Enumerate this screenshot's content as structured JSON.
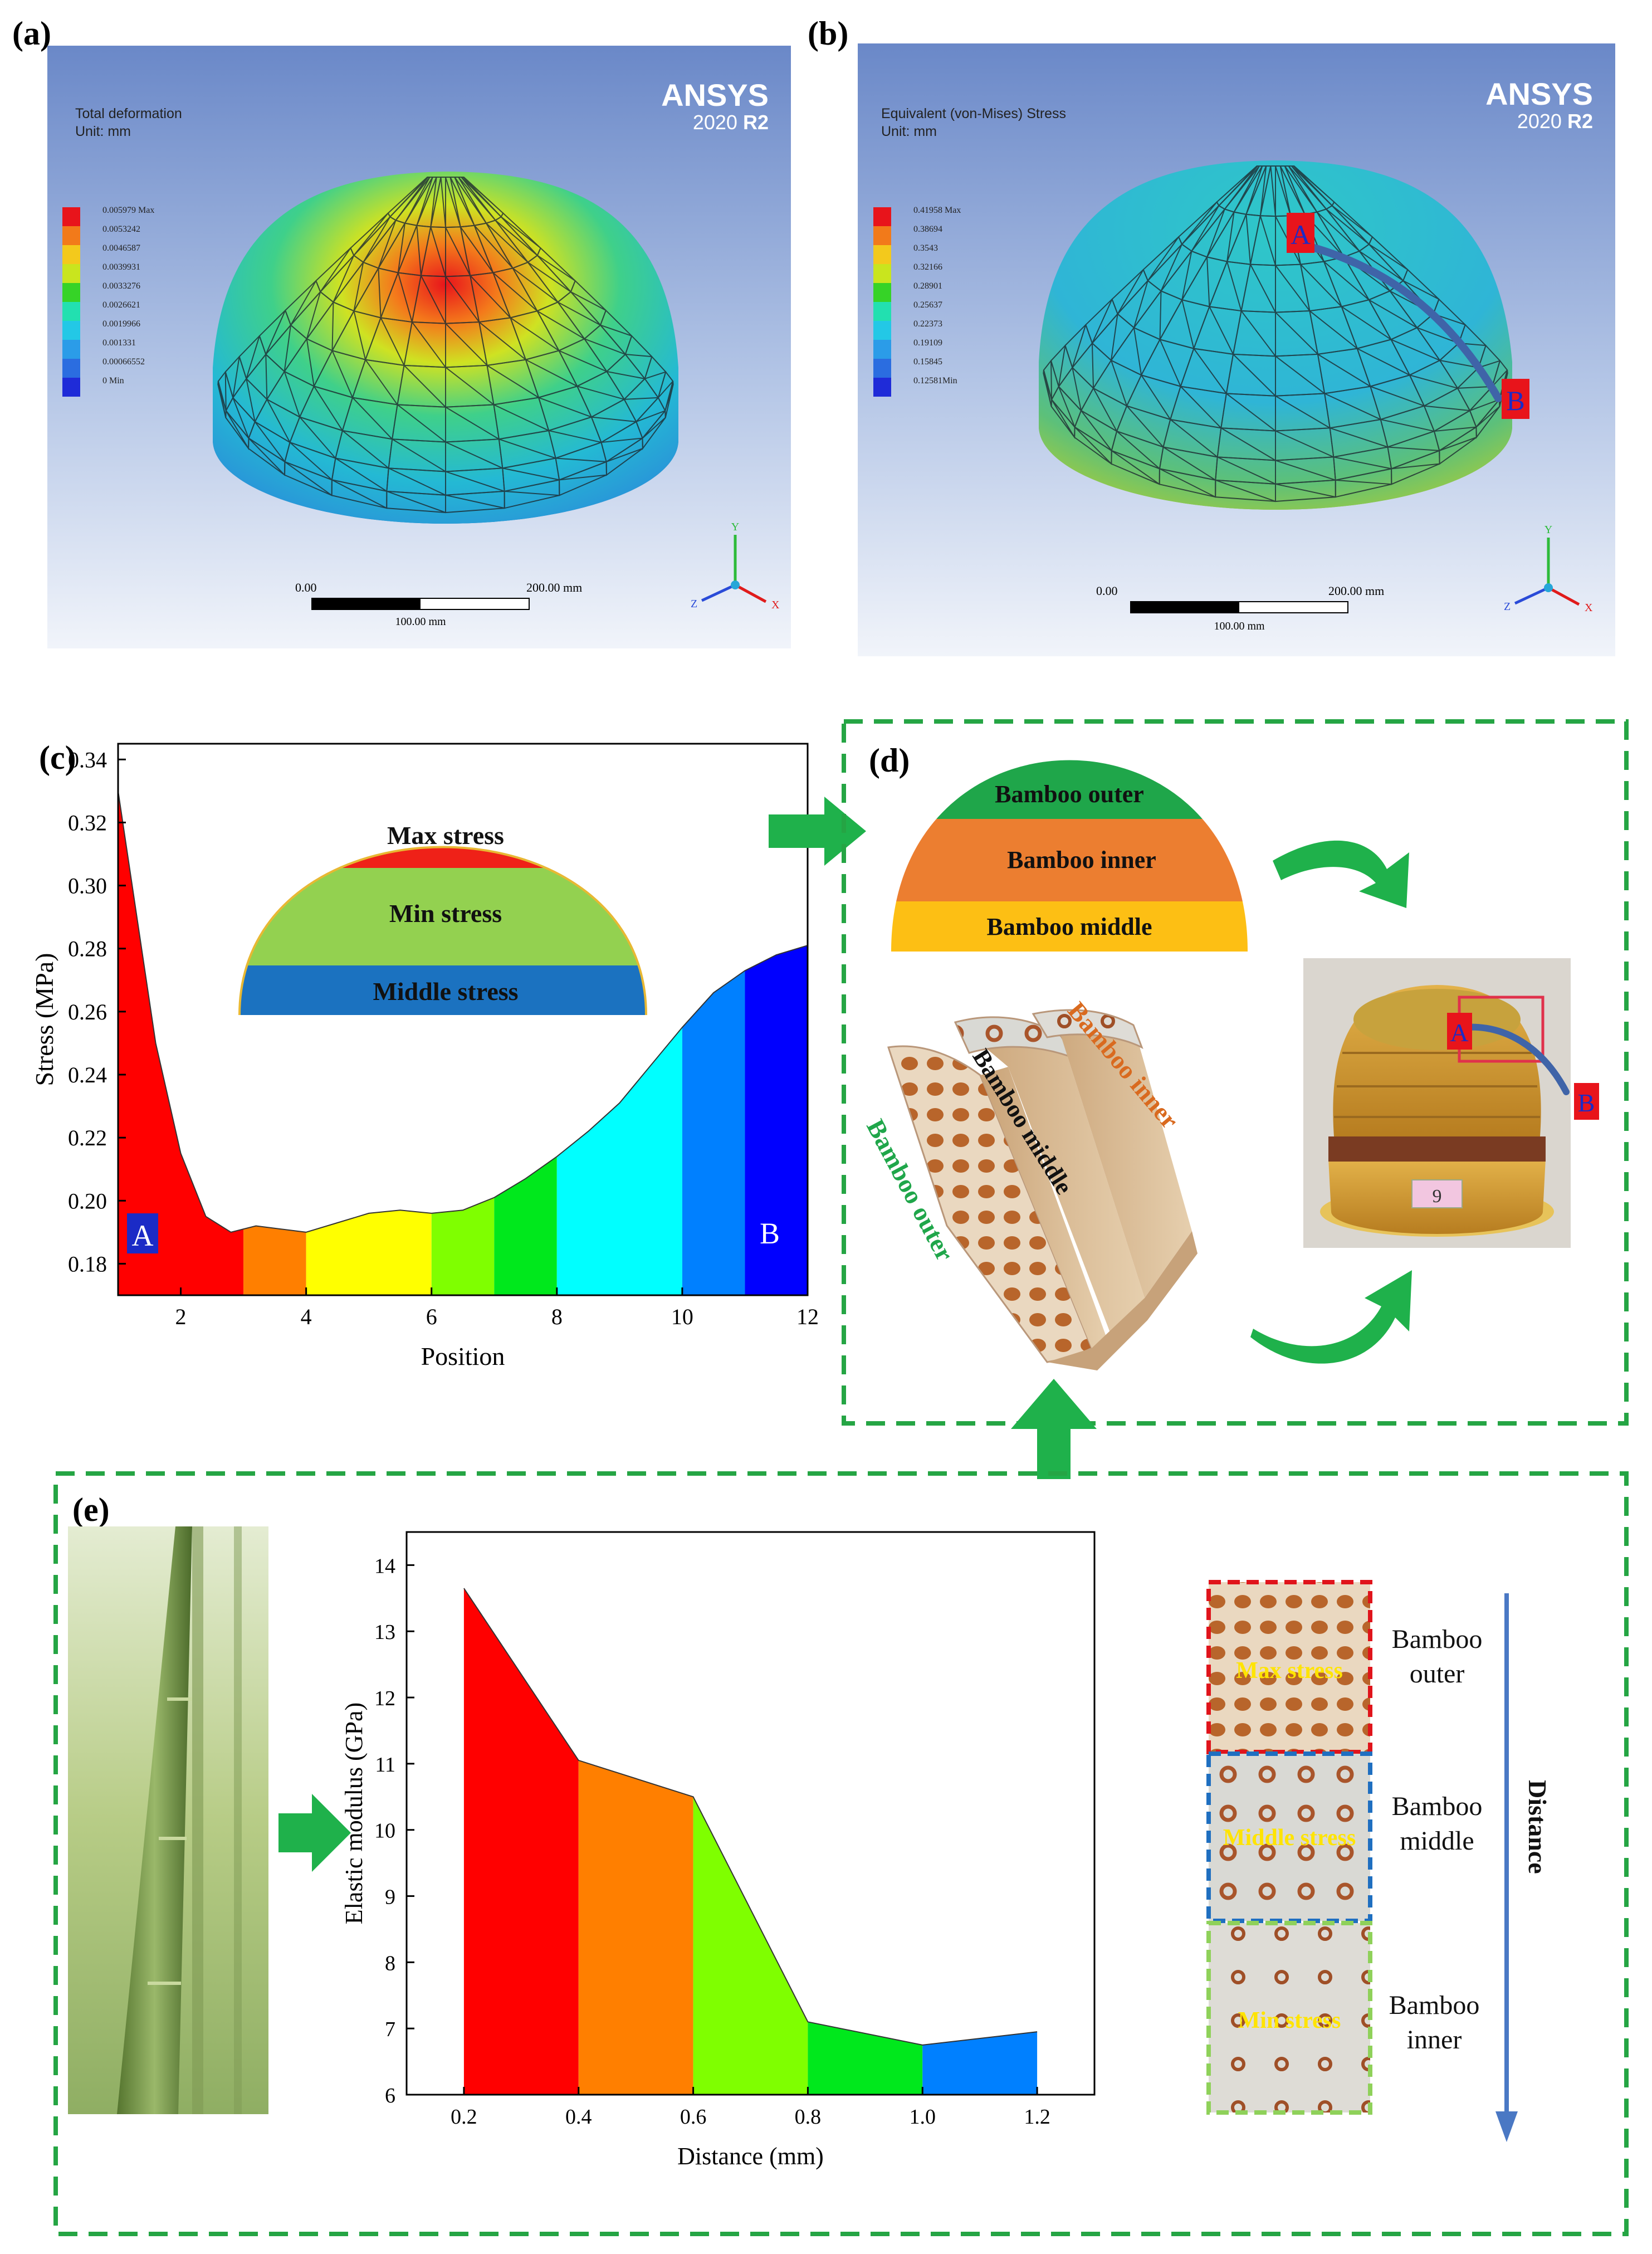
{
  "panel_labels": {
    "a": "(a)",
    "b": "(b)",
    "c": "(c)",
    "d": "(d)",
    "e": "(e)"
  },
  "ansys": {
    "brand": "ANSYS",
    "version": "2020",
    "release": "R2"
  },
  "panel_a": {
    "title": "Total deformation",
    "unit": "Unit: mm",
    "legend": [
      "0.005979 Max",
      "0.0053242",
      "0.0046587",
      "0.0039931",
      "0.0033276",
      "0.0026621",
      "0.0019966",
      "0.001331",
      "0.00066552",
      "0 Min"
    ],
    "scale": {
      "zero": "0.00",
      "end": "200.00 mm",
      "mid": "100.00 mm"
    }
  },
  "panel_b": {
    "title": "Equivalent (von-Mises) Stress",
    "unit": "Unit: mm",
    "legend": [
      "0.41958 Max",
      "0.38694",
      "0.3543",
      "0.32166",
      "0.28901",
      "0.25637",
      "0.22373",
      "0.19109",
      "0.15845",
      "0.12581Min"
    ],
    "scale": {
      "zero": "0.00",
      "end": "200.00 mm",
      "mid": "100.00 mm"
    },
    "marker_a": "A",
    "marker_b": "B"
  },
  "axis_triad": {
    "y": "Y",
    "z": "Z",
    "x": "X"
  },
  "legend_colors": [
    "#e8141b",
    "#f27a1a",
    "#f3c91c",
    "#c9e51e",
    "#36d327",
    "#22e0b0",
    "#23c8e6",
    "#2b9ce8",
    "#2b6de0",
    "#1f2bd8"
  ],
  "panel_c": {
    "dome_bands": [
      "Max stress",
      "Min stress",
      "Middle stress"
    ],
    "point_a": "A",
    "point_b": "B"
  },
  "panel_d": {
    "dome_bands": [
      "Bamboo outer",
      "Bamboo inner",
      "Bamboo middle"
    ],
    "strip_labels": {
      "outer": "Bamboo outer",
      "middle": "Bamboo middle",
      "inner": "Bamboo inner"
    },
    "photo_marker_a": "A",
    "photo_marker_b": "B",
    "tag": "9"
  },
  "panel_e": {
    "layers": [
      {
        "overlay": "Max stress",
        "label_line1": "Bamboo",
        "label_line2": "outer"
      },
      {
        "overlay": "Middle stress",
        "label_line1": "Bamboo",
        "label_line2": "middle"
      },
      {
        "overlay": "Min stress",
        "label_line1": "Bamboo",
        "label_line2": "inner"
      }
    ],
    "distance_label": "Distance"
  },
  "chart_data": [
    {
      "type": "area",
      "panel": "(c)",
      "xlabel": "Position",
      "ylabel": "Stress (MPa)",
      "xlim": [
        1,
        12
      ],
      "ylim": [
        0.17,
        0.345
      ],
      "xticks": [
        2,
        4,
        6,
        8,
        10,
        12
      ],
      "yticks": [
        0.18,
        0.2,
        0.22,
        0.24,
        0.26,
        0.28,
        0.3,
        0.32,
        0.34
      ],
      "x": [
        1,
        1.3,
        1.6,
        2.0,
        2.4,
        2.8,
        3.2,
        3.6,
        4.0,
        4.5,
        5.0,
        5.5,
        6.0,
        6.5,
        7.0,
        7.5,
        8.0,
        8.5,
        9.0,
        9.5,
        10.0,
        10.5,
        11.0,
        11.5,
        12.0
      ],
      "values": [
        0.33,
        0.29,
        0.25,
        0.215,
        0.195,
        0.19,
        0.192,
        0.191,
        0.19,
        0.193,
        0.196,
        0.197,
        0.196,
        0.197,
        0.201,
        0.207,
        0.214,
        0.222,
        0.231,
        0.243,
        0.255,
        0.266,
        0.273,
        0.278,
        0.281
      ],
      "bands": [
        {
          "from": 1,
          "to": 3,
          "color": "#ff0000"
        },
        {
          "from": 3,
          "to": 4,
          "color": "#ff7f00"
        },
        {
          "from": 4,
          "to": 6,
          "color": "#ffff00"
        },
        {
          "from": 6,
          "to": 7,
          "color": "#7fff00"
        },
        {
          "from": 7,
          "to": 8,
          "color": "#00e81c"
        },
        {
          "from": 8,
          "to": 10,
          "color": "#00ffff"
        },
        {
          "from": 10,
          "to": 11,
          "color": "#0080ff"
        },
        {
          "from": 11,
          "to": 12,
          "color": "#0000ff"
        }
      ]
    },
    {
      "type": "area",
      "panel": "(e)",
      "xlabel": "Distance (mm)",
      "ylabel": "Elastic modulus (GPa)",
      "xlim": [
        0.1,
        1.3
      ],
      "ylim": [
        6,
        14.5
      ],
      "xticks": [
        0.2,
        0.4,
        0.6,
        0.8,
        1.0,
        1.2
      ],
      "yticks": [
        6,
        7,
        8,
        9,
        10,
        11,
        12,
        13,
        14
      ],
      "x": [
        0.2,
        0.4,
        0.6,
        0.8,
        1.0,
        1.2
      ],
      "values": [
        13.65,
        11.05,
        10.5,
        7.1,
        6.75,
        6.95
      ],
      "bands": [
        {
          "from": 0.2,
          "to": 0.4,
          "color": "#ff0000"
        },
        {
          "from": 0.4,
          "to": 0.6,
          "color": "#ff7f00"
        },
        {
          "from": 0.6,
          "to": 0.8,
          "color": "#7fff00"
        },
        {
          "from": 0.8,
          "to": 1.0,
          "color": "#00e81c"
        },
        {
          "from": 1.0,
          "to": 1.2,
          "color": "#0080ff"
        }
      ]
    }
  ]
}
